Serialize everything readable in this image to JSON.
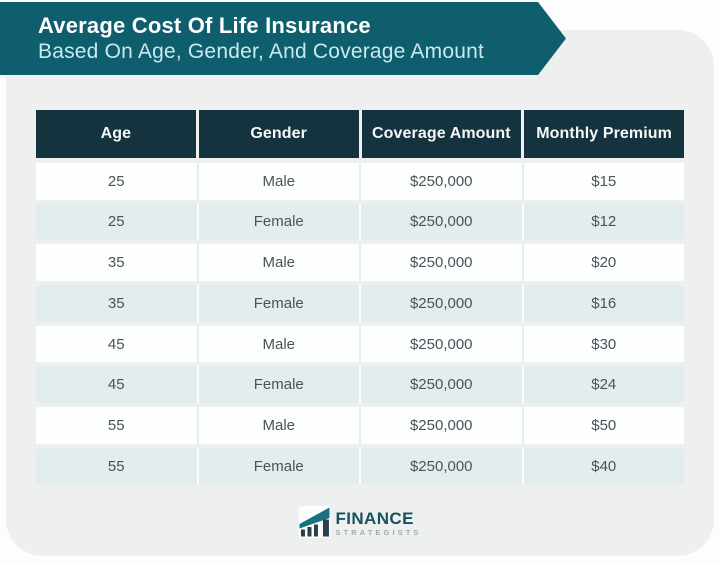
{
  "banner": {
    "title": "Average Cost Of Life Insurance",
    "subtitle": "Based On Age, Gender, And Coverage Amount"
  },
  "chart_data": {
    "type": "table",
    "title": "Average Cost Of Life Insurance Based On Age, Gender, And Coverage Amount",
    "columns": [
      "Age",
      "Gender",
      "Coverage Amount",
      "Monthly Premium"
    ],
    "rows": [
      [
        "25",
        "Male",
        "$250,000",
        "$15"
      ],
      [
        "25",
        "Female",
        "$250,000",
        "$12"
      ],
      [
        "35",
        "Male",
        "$250,000",
        "$20"
      ],
      [
        "35",
        "Female",
        "$250,000",
        "$16"
      ],
      [
        "45",
        "Male",
        "$250,000",
        "$30"
      ],
      [
        "45",
        "Female",
        "$250,000",
        "$24"
      ],
      [
        "55",
        "Male",
        "$250,000",
        "$50"
      ],
      [
        "55",
        "Female",
        "$250,000",
        "$40"
      ]
    ],
    "layout_hints": {
      "striped_rows": true,
      "stripe_pattern": "even rows white, odd rows light blue"
    }
  },
  "footer": {
    "logo_text": "FINANCE",
    "logo_subtext": "STRATEGISTS"
  },
  "colors": {
    "banner_teal": "#0e5e6e",
    "header_navy": "#14333e",
    "row_stripe_blue": "#e3edf0",
    "card_gray": "#eef0f0",
    "banner_subtitle_cyan": "#c9e9ef",
    "logo_teal": "#19717f"
  }
}
